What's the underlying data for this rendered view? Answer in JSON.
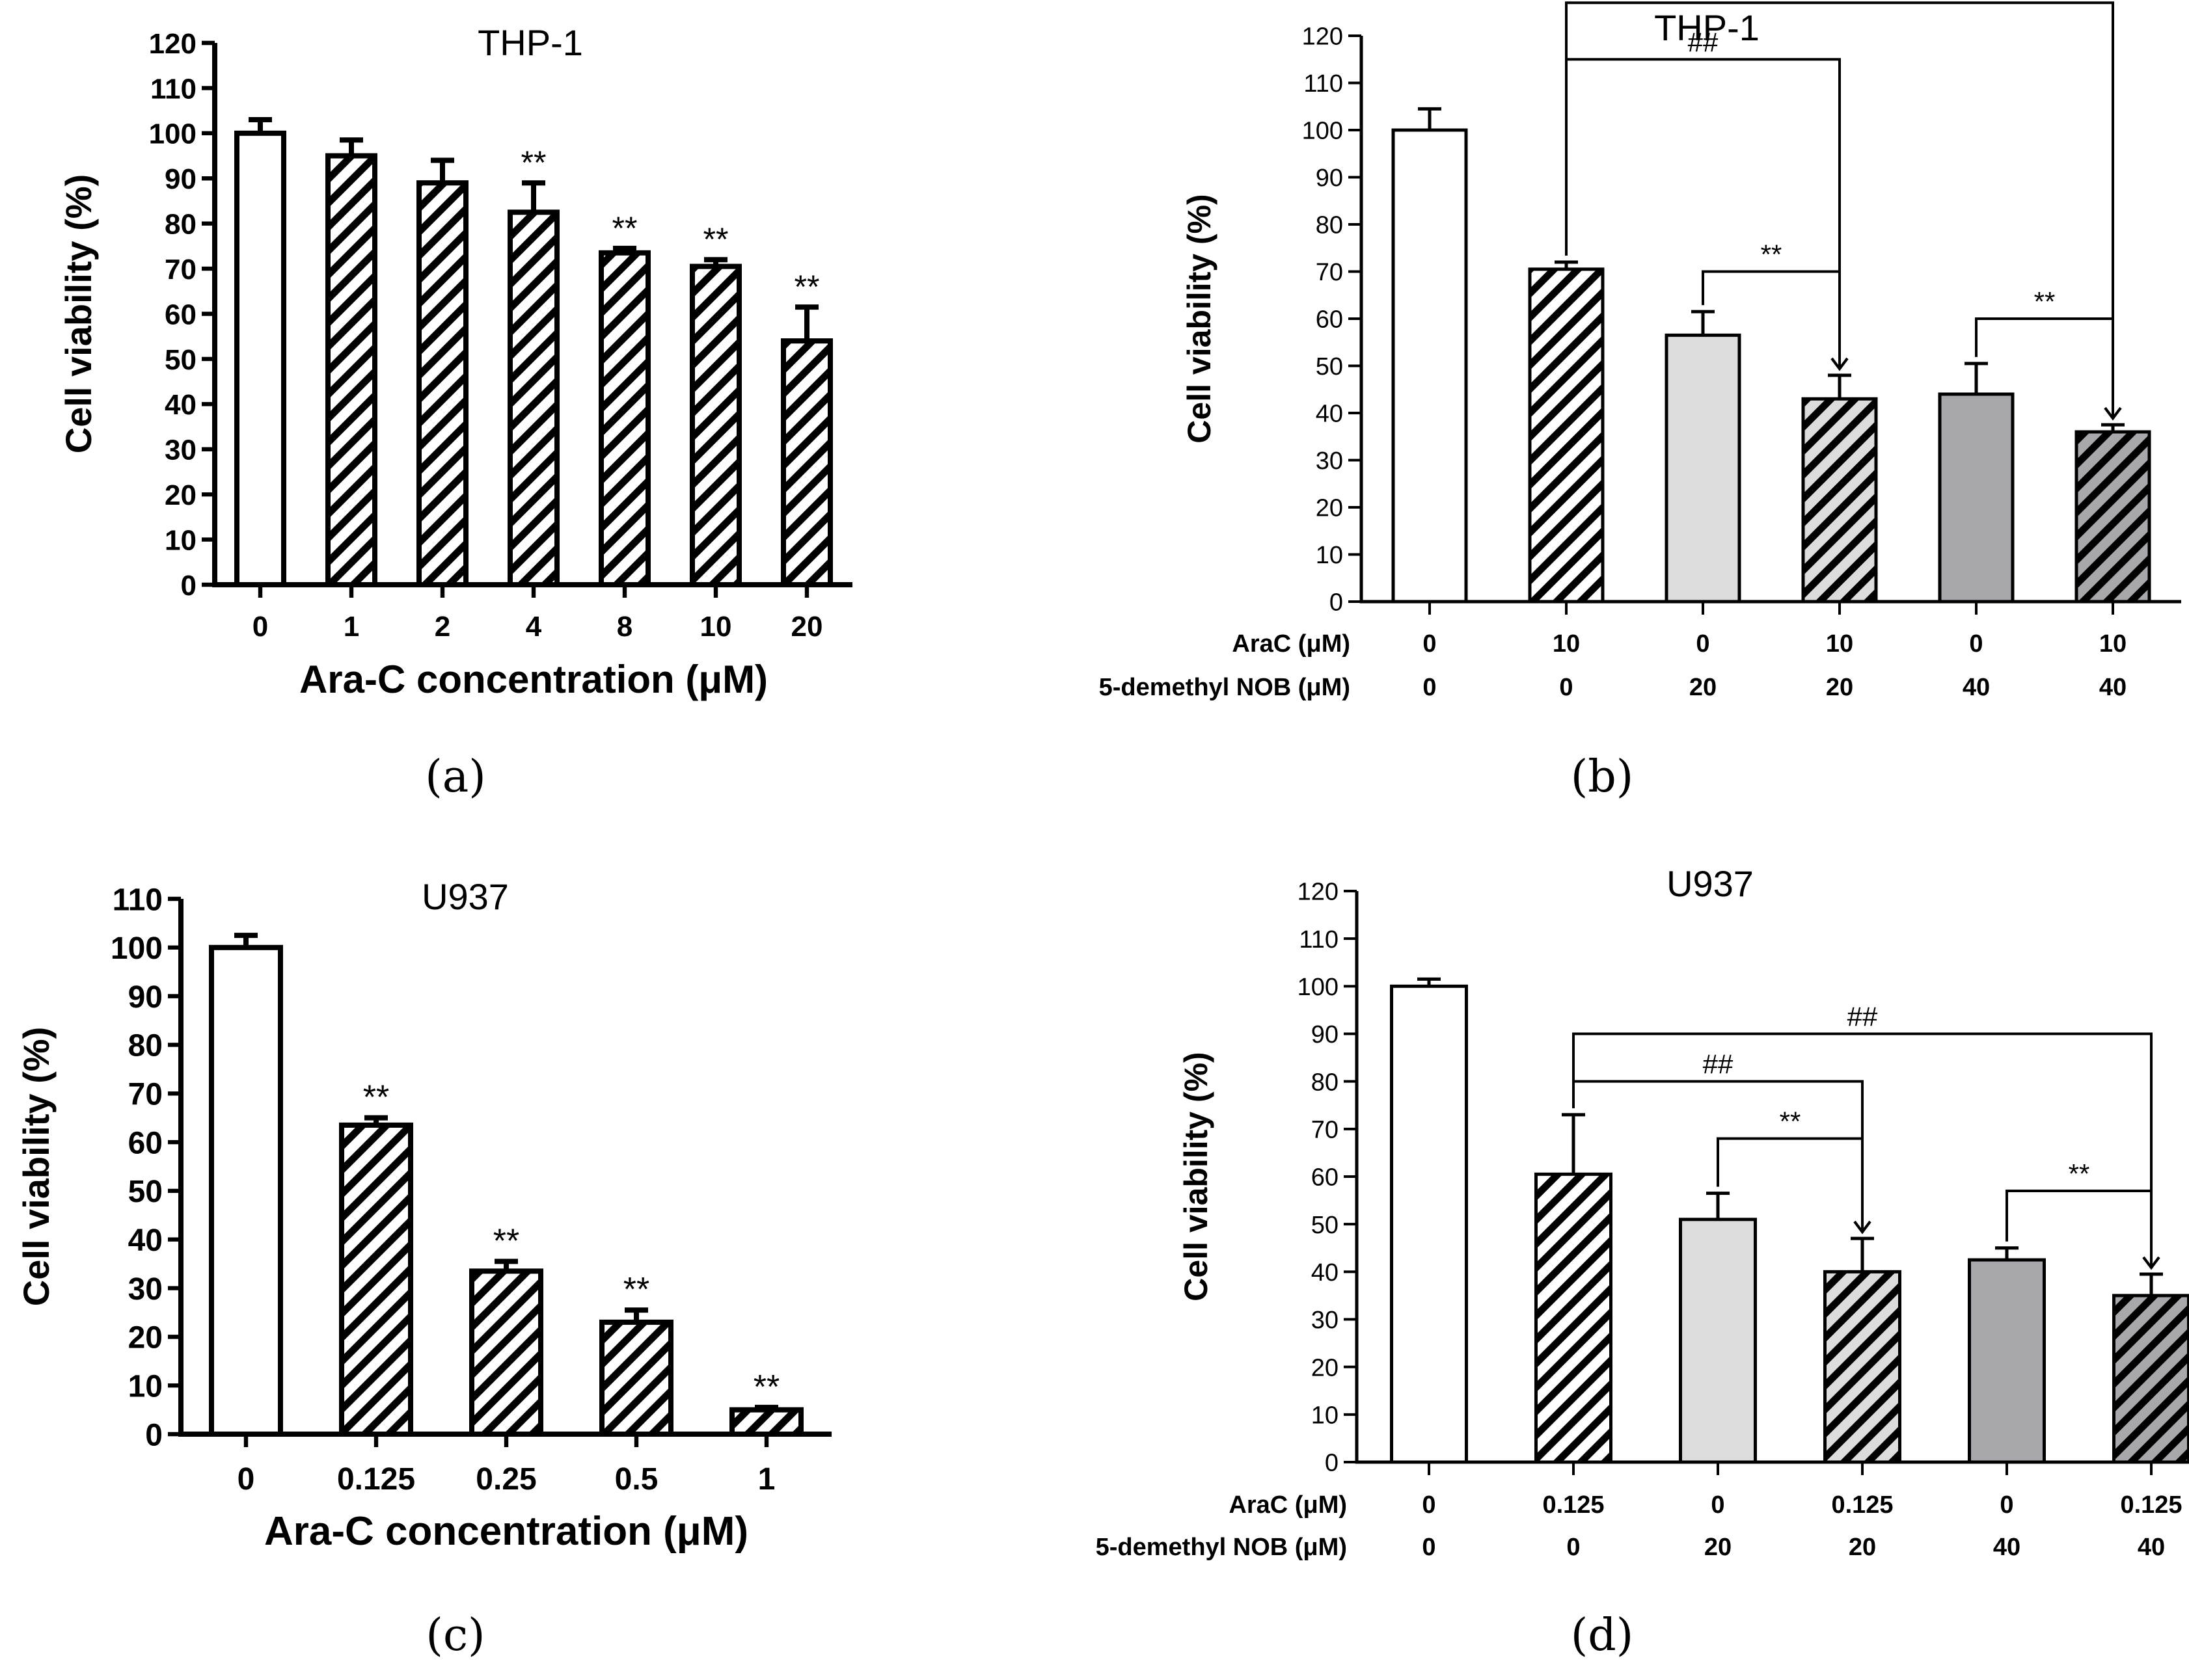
{
  "panels": [
    {
      "label": "(a)",
      "chart_data": {
        "type": "bar",
        "title": "THP-1",
        "xlabel": "Ara-C concentration (μM)",
        "ylabel": "Cell viability (%)",
        "ylim": [
          0,
          120
        ],
        "yticks": [
          0,
          10,
          20,
          30,
          40,
          50,
          60,
          70,
          80,
          90,
          100,
          110,
          120
        ],
        "categories": [
          "0",
          "1",
          "2",
          "4",
          "8",
          "10",
          "20"
        ],
        "values": [
          100,
          95,
          89,
          82.5,
          73.5,
          70.5,
          54
        ],
        "errors": [
          3,
          3.5,
          5,
          6.5,
          1,
          1.5,
          7.5
        ],
        "fills": [
          "white",
          "hatch",
          "hatch",
          "hatch",
          "hatch",
          "hatch",
          "hatch"
        ],
        "significance": [
          "",
          "",
          "",
          "**",
          "**",
          "**",
          "**"
        ],
        "grid": false
      }
    },
    {
      "label": "(b)",
      "chart_data": {
        "type": "bar",
        "title": "THP-1",
        "ylabel": "Cell viability (%)",
        "ylim": [
          0,
          120
        ],
        "yticks": [
          0,
          10,
          20,
          30,
          40,
          50,
          60,
          70,
          80,
          90,
          100,
          110,
          120
        ],
        "rows": [
          {
            "label": "AraC (μM)",
            "values": [
              "0",
              "10",
              "0",
              "10",
              "0",
              "10"
            ]
          },
          {
            "label": "5-demethyl NOB (μM)",
            "values": [
              "0",
              "0",
              "20",
              "20",
              "40",
              "40"
            ]
          }
        ],
        "values": [
          100,
          70.5,
          56.5,
          43,
          44,
          36
        ],
        "errors": [
          4.5,
          1.5,
          5,
          5,
          6.5,
          1.5
        ],
        "fills": [
          "white",
          "hatch",
          "#dcdcdc",
          "hatch-light",
          "#a8a8ac",
          "hatch-dark"
        ],
        "comparisons": [
          {
            "from": 1,
            "to": 5,
            "y": 127,
            "label": "##"
          },
          {
            "from": 1,
            "to": 3,
            "y": 115,
            "label": "##"
          },
          {
            "from": 2,
            "to": 3,
            "y": 70,
            "label": "**"
          },
          {
            "from": 4,
            "to": 5,
            "y": 60,
            "label": "**"
          }
        ],
        "grid": false
      }
    },
    {
      "label": "(c)",
      "chart_data": {
        "type": "bar",
        "title": "U937",
        "xlabel": "Ara-C concentration (μM)",
        "ylabel": "Cell viability (%)",
        "ylim": [
          0,
          110
        ],
        "yticks": [
          0,
          10,
          20,
          30,
          40,
          50,
          60,
          70,
          80,
          90,
          100,
          110
        ],
        "categories": [
          "0",
          "0.125",
          "0.25",
          "0.5",
          "1"
        ],
        "values": [
          100,
          63.5,
          33.5,
          23,
          5
        ],
        "errors": [
          2.5,
          1.5,
          2,
          2.5,
          0.5
        ],
        "fills": [
          "white",
          "hatch",
          "hatch",
          "hatch",
          "hatch"
        ],
        "significance": [
          "",
          "**",
          "**",
          "**",
          "**"
        ],
        "grid": false
      }
    },
    {
      "label": "(d)",
      "chart_data": {
        "type": "bar",
        "title": "U937",
        "ylabel": "Cell viability (%)",
        "ylim": [
          0,
          120
        ],
        "yticks": [
          0,
          10,
          20,
          30,
          40,
          50,
          60,
          70,
          80,
          90,
          100,
          110,
          120
        ],
        "rows": [
          {
            "label": "AraC (μM)",
            "values": [
              "0",
              "0.125",
              "0",
              "0.125",
              "0",
              "0.125"
            ]
          },
          {
            "label": "5-demethyl NOB (μM)",
            "values": [
              "0",
              "0",
              "20",
              "20",
              "40",
              "40"
            ]
          }
        ],
        "values": [
          100,
          60.5,
          51,
          40,
          42.5,
          35
        ],
        "errors": [
          1.5,
          12.5,
          5.5,
          7,
          2.5,
          4.5
        ],
        "fills": [
          "white",
          "hatch",
          "#dcdcdc",
          "hatch-light",
          "#a8a8ac",
          "hatch-dark"
        ],
        "comparisons": [
          {
            "from": 1,
            "to": 5,
            "y": 90,
            "label": "##"
          },
          {
            "from": 1,
            "to": 3,
            "y": 80,
            "label": "##"
          },
          {
            "from": 2,
            "to": 3,
            "y": 68,
            "label": "**"
          },
          {
            "from": 4,
            "to": 5,
            "y": 57,
            "label": "**"
          }
        ],
        "grid": false
      }
    }
  ]
}
